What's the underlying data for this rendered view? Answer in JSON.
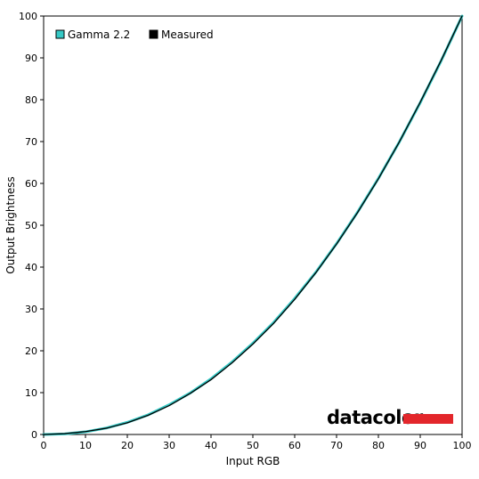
{
  "chart_data": {
    "type": "line",
    "xlabel": "Input RGB",
    "ylabel": "Output Brightness",
    "xlim": [
      0,
      100
    ],
    "ylim": [
      0,
      100
    ],
    "xticks": [
      "0",
      "10",
      "20",
      "30",
      "40",
      "50",
      "60",
      "70",
      "80",
      "90",
      "100"
    ],
    "yticks": [
      "0",
      "10",
      "20",
      "30",
      "40",
      "50",
      "60",
      "70",
      "80",
      "90",
      "100"
    ],
    "grid": true,
    "legend_position": "top-left",
    "series": [
      {
        "name": "Gamma 2.2",
        "color": "#36c9c6",
        "x": [
          0,
          5,
          10,
          15,
          20,
          25,
          30,
          35,
          40,
          45,
          50,
          55,
          60,
          65,
          70,
          75,
          80,
          85,
          90,
          95,
          100
        ],
        "y": [
          0,
          0.14,
          0.63,
          1.55,
          2.9,
          4.7,
          7.1,
          9.9,
          13.3,
          17.3,
          21.8,
          26.8,
          32.5,
          38.7,
          45.6,
          53.1,
          61.2,
          69.9,
          79.3,
          89.3,
          100
        ]
      },
      {
        "name": "Measured",
        "color": "#000000",
        "x": [
          0,
          5,
          10,
          15,
          20,
          25,
          30,
          35,
          40,
          45,
          50,
          55,
          60,
          65,
          70,
          75,
          80,
          85,
          90,
          95,
          100
        ],
        "y": [
          0,
          0.2,
          0.7,
          1.5,
          2.8,
          4.6,
          6.9,
          9.8,
          13.1,
          17.1,
          21.6,
          26.6,
          32.3,
          38.6,
          45.5,
          53.0,
          61.1,
          69.9,
          79.4,
          89.4,
          100
        ]
      }
    ]
  },
  "brand": {
    "name": "datacolor",
    "accent_color": "#e3262b"
  }
}
